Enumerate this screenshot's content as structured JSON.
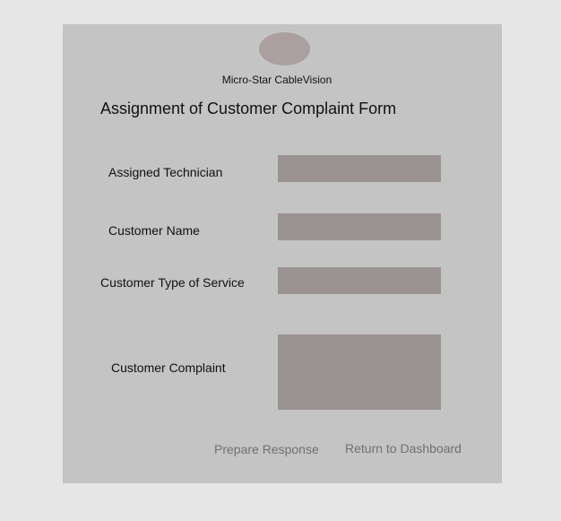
{
  "header": {
    "logo_icon": "company-logo-placeholder",
    "company_name": "Micro-Star CableVision"
  },
  "form": {
    "title": "Assignment of Customer Complaint Form",
    "fields": {
      "assigned_technician": {
        "label": "Assigned Technician",
        "value": ""
      },
      "customer_name": {
        "label": "Customer Name",
        "value": ""
      },
      "customer_type_of_service": {
        "label": "Customer Type of Service",
        "value": ""
      },
      "customer_complaint": {
        "label": "Customer Complaint",
        "value": ""
      }
    }
  },
  "actions": {
    "prepare_response": "Prepare Response",
    "return_to_dashboard": "Return to Dashboard"
  },
  "colors": {
    "page_background": "#e6e6e6",
    "panel_background": "#c4c4c4",
    "field_background": "#9b9391",
    "logo_fill": "#ab9f9f",
    "button_text": "#707070"
  }
}
